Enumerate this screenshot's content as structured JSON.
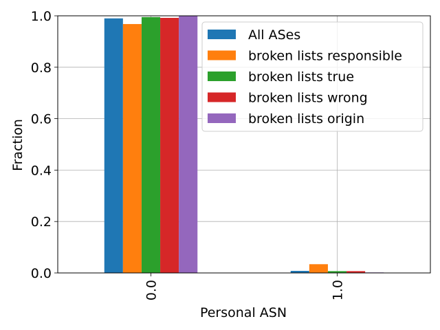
{
  "chart_data": {
    "type": "bar",
    "categories": [
      "0.0",
      "1.0"
    ],
    "series": [
      {
        "name": "All ASes",
        "color": "#1f77b4",
        "values": [
          0.99,
          0.008
        ]
      },
      {
        "name": "broken lists responsible",
        "color": "#ff7f0e",
        "values": [
          0.968,
          0.034
        ]
      },
      {
        "name": "broken lists true",
        "color": "#2ca02c",
        "values": [
          0.995,
          0.007
        ]
      },
      {
        "name": "broken lists wrong",
        "color": "#d62728",
        "values": [
          0.992,
          0.007
        ]
      },
      {
        "name": "broken lists origin",
        "color": "#9467bd",
        "values": [
          1.0,
          0.002
        ]
      }
    ],
    "xlabel": "Personal ASN",
    "ylabel": "Fraction",
    "ylim": [
      0,
      1.0
    ],
    "yticks": [
      "0.0",
      "0.2",
      "0.4",
      "0.6",
      "0.8",
      "1.0"
    ],
    "grid": true,
    "legend_position": "top-right"
  }
}
